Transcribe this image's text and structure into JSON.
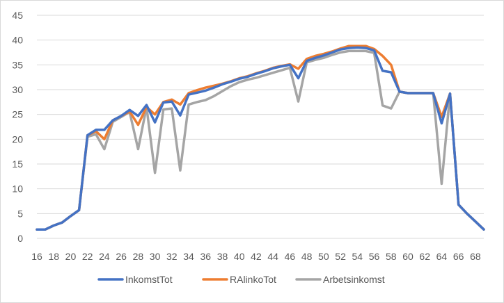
{
  "chart_data": {
    "type": "line",
    "x": [
      16,
      17,
      18,
      19,
      20,
      21,
      22,
      23,
      24,
      25,
      26,
      27,
      28,
      29,
      30,
      31,
      32,
      33,
      34,
      35,
      36,
      37,
      38,
      39,
      40,
      41,
      42,
      43,
      44,
      45,
      46,
      47,
      48,
      49,
      50,
      51,
      52,
      53,
      54,
      55,
      56,
      57,
      58,
      59,
      60,
      61,
      62,
      63,
      64,
      65,
      66,
      67,
      68,
      69
    ],
    "x_tick_labels": [
      "16",
      "18",
      "20",
      "22",
      "24",
      "26",
      "28",
      "30",
      "32",
      "34",
      "36",
      "38",
      "40",
      "42",
      "44",
      "46",
      "48",
      "50",
      "52",
      "54",
      "56",
      "58",
      "60",
      "62",
      "64",
      "66",
      "68"
    ],
    "ylim": [
      0,
      45
    ],
    "y_ticks": [
      0,
      5,
      10,
      15,
      20,
      25,
      30,
      35,
      40,
      45
    ],
    "grid": true,
    "legend_position": "bottom",
    "series": [
      {
        "name": "InkomstTot",
        "color": "#4472C4",
        "values": [
          1.8,
          1.8,
          2.6,
          3.2,
          4.5,
          5.7,
          20.8,
          21.9,
          21.9,
          23.8,
          24.7,
          25.9,
          24.7,
          26.9,
          23.4,
          27.4,
          27.6,
          24.8,
          29.0,
          29.4,
          29.8,
          30.4,
          31.1,
          31.6,
          32.2,
          32.6,
          33.2,
          33.7,
          34.3,
          34.7,
          35.0,
          32.3,
          35.8,
          36.4,
          36.9,
          37.5,
          38.1,
          38.4,
          38.5,
          38.4,
          37.9,
          33.8,
          33.5,
          29.6,
          29.3,
          29.3,
          29.3,
          29.3,
          23.2,
          29.2,
          6.8,
          5.0,
          3.4,
          1.8
        ]
      },
      {
        "name": "RAlinkoTot",
        "color": "#ED7D31",
        "values": [
          1.8,
          1.8,
          2.6,
          3.2,
          4.5,
          5.7,
          20.8,
          21.6,
          20.0,
          23.8,
          24.7,
          25.6,
          22.9,
          26.5,
          25.0,
          27.5,
          28.0,
          27.0,
          29.3,
          29.9,
          30.4,
          30.8,
          31.2,
          31.7,
          32.3,
          32.7,
          33.3,
          33.8,
          34.4,
          34.8,
          35.1,
          34.2,
          36.2,
          36.8,
          37.2,
          37.7,
          38.3,
          38.8,
          38.8,
          38.8,
          38.2,
          36.8,
          35.0,
          29.6,
          29.3,
          29.3,
          29.3,
          29.3,
          24.5,
          29.2,
          6.8,
          5.0,
          3.4,
          1.8
        ]
      },
      {
        "name": "Arbetsinkomst",
        "color": "#A5A5A5",
        "values": [
          1.8,
          1.8,
          2.6,
          3.2,
          4.5,
          5.7,
          20.5,
          21.0,
          18.0,
          23.5,
          24.5,
          25.5,
          18.0,
          26.5,
          13.2,
          26.0,
          26.2,
          13.7,
          27.0,
          27.5,
          27.9,
          28.7,
          29.7,
          30.7,
          31.5,
          32.0,
          32.4,
          32.9,
          33.4,
          33.9,
          34.4,
          27.6,
          35.5,
          36.0,
          36.4,
          37.0,
          37.5,
          37.8,
          37.8,
          37.8,
          37.4,
          26.8,
          26.2,
          29.6,
          29.3,
          29.3,
          29.3,
          29.3,
          11.0,
          29.2,
          6.8,
          5.0,
          3.4,
          1.8
        ]
      }
    ]
  }
}
